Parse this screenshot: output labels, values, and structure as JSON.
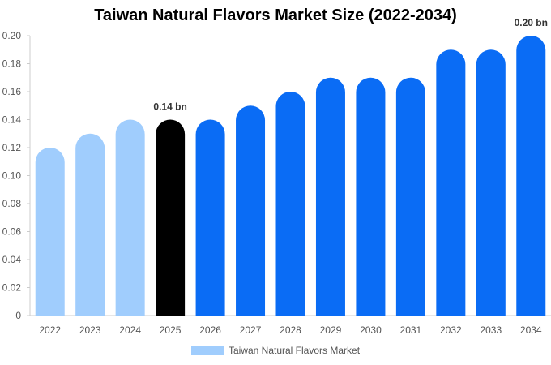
{
  "chart_data": {
    "type": "bar",
    "title": "Taiwan Natural Flavors Market Size (2022-2034)",
    "categories": [
      "2022",
      "2023",
      "2024",
      "2025",
      "2026",
      "2027",
      "2028",
      "2029",
      "2030",
      "2031",
      "2032",
      "2033",
      "2034"
    ],
    "series": [
      {
        "name": "Taiwan Natural Flavors Market",
        "values": [
          0.12,
          0.13,
          0.14,
          0.14,
          0.14,
          0.15,
          0.16,
          0.17,
          0.17,
          0.17,
          0.19,
          0.19,
          0.2
        ]
      }
    ],
    "bar_colors": [
      "#a0cdfd",
      "#a0cdfd",
      "#a0cdfd",
      "#000000",
      "#0a6cf5",
      "#0a6cf5",
      "#0a6cf5",
      "#0a6cf5",
      "#0a6cf5",
      "#0a6cf5",
      "#0a6cf5",
      "#0a6cf5",
      "#0a6cf5"
    ],
    "data_labels": [
      {
        "index": 3,
        "text": "0.14 bn"
      },
      {
        "index": 12,
        "text": "0.20 bn"
      }
    ],
    "y_ticks": [
      "0",
      "0.02",
      "0.04",
      "0.06",
      "0.08",
      "0.10",
      "0.12",
      "0.14",
      "0.16",
      "0.18",
      "0.20"
    ],
    "ylim": [
      0,
      0.2
    ],
    "xlabel": "",
    "ylabel": "",
    "grid": false,
    "legend_position": "bottom",
    "legend_color": "#a0cdfd"
  }
}
